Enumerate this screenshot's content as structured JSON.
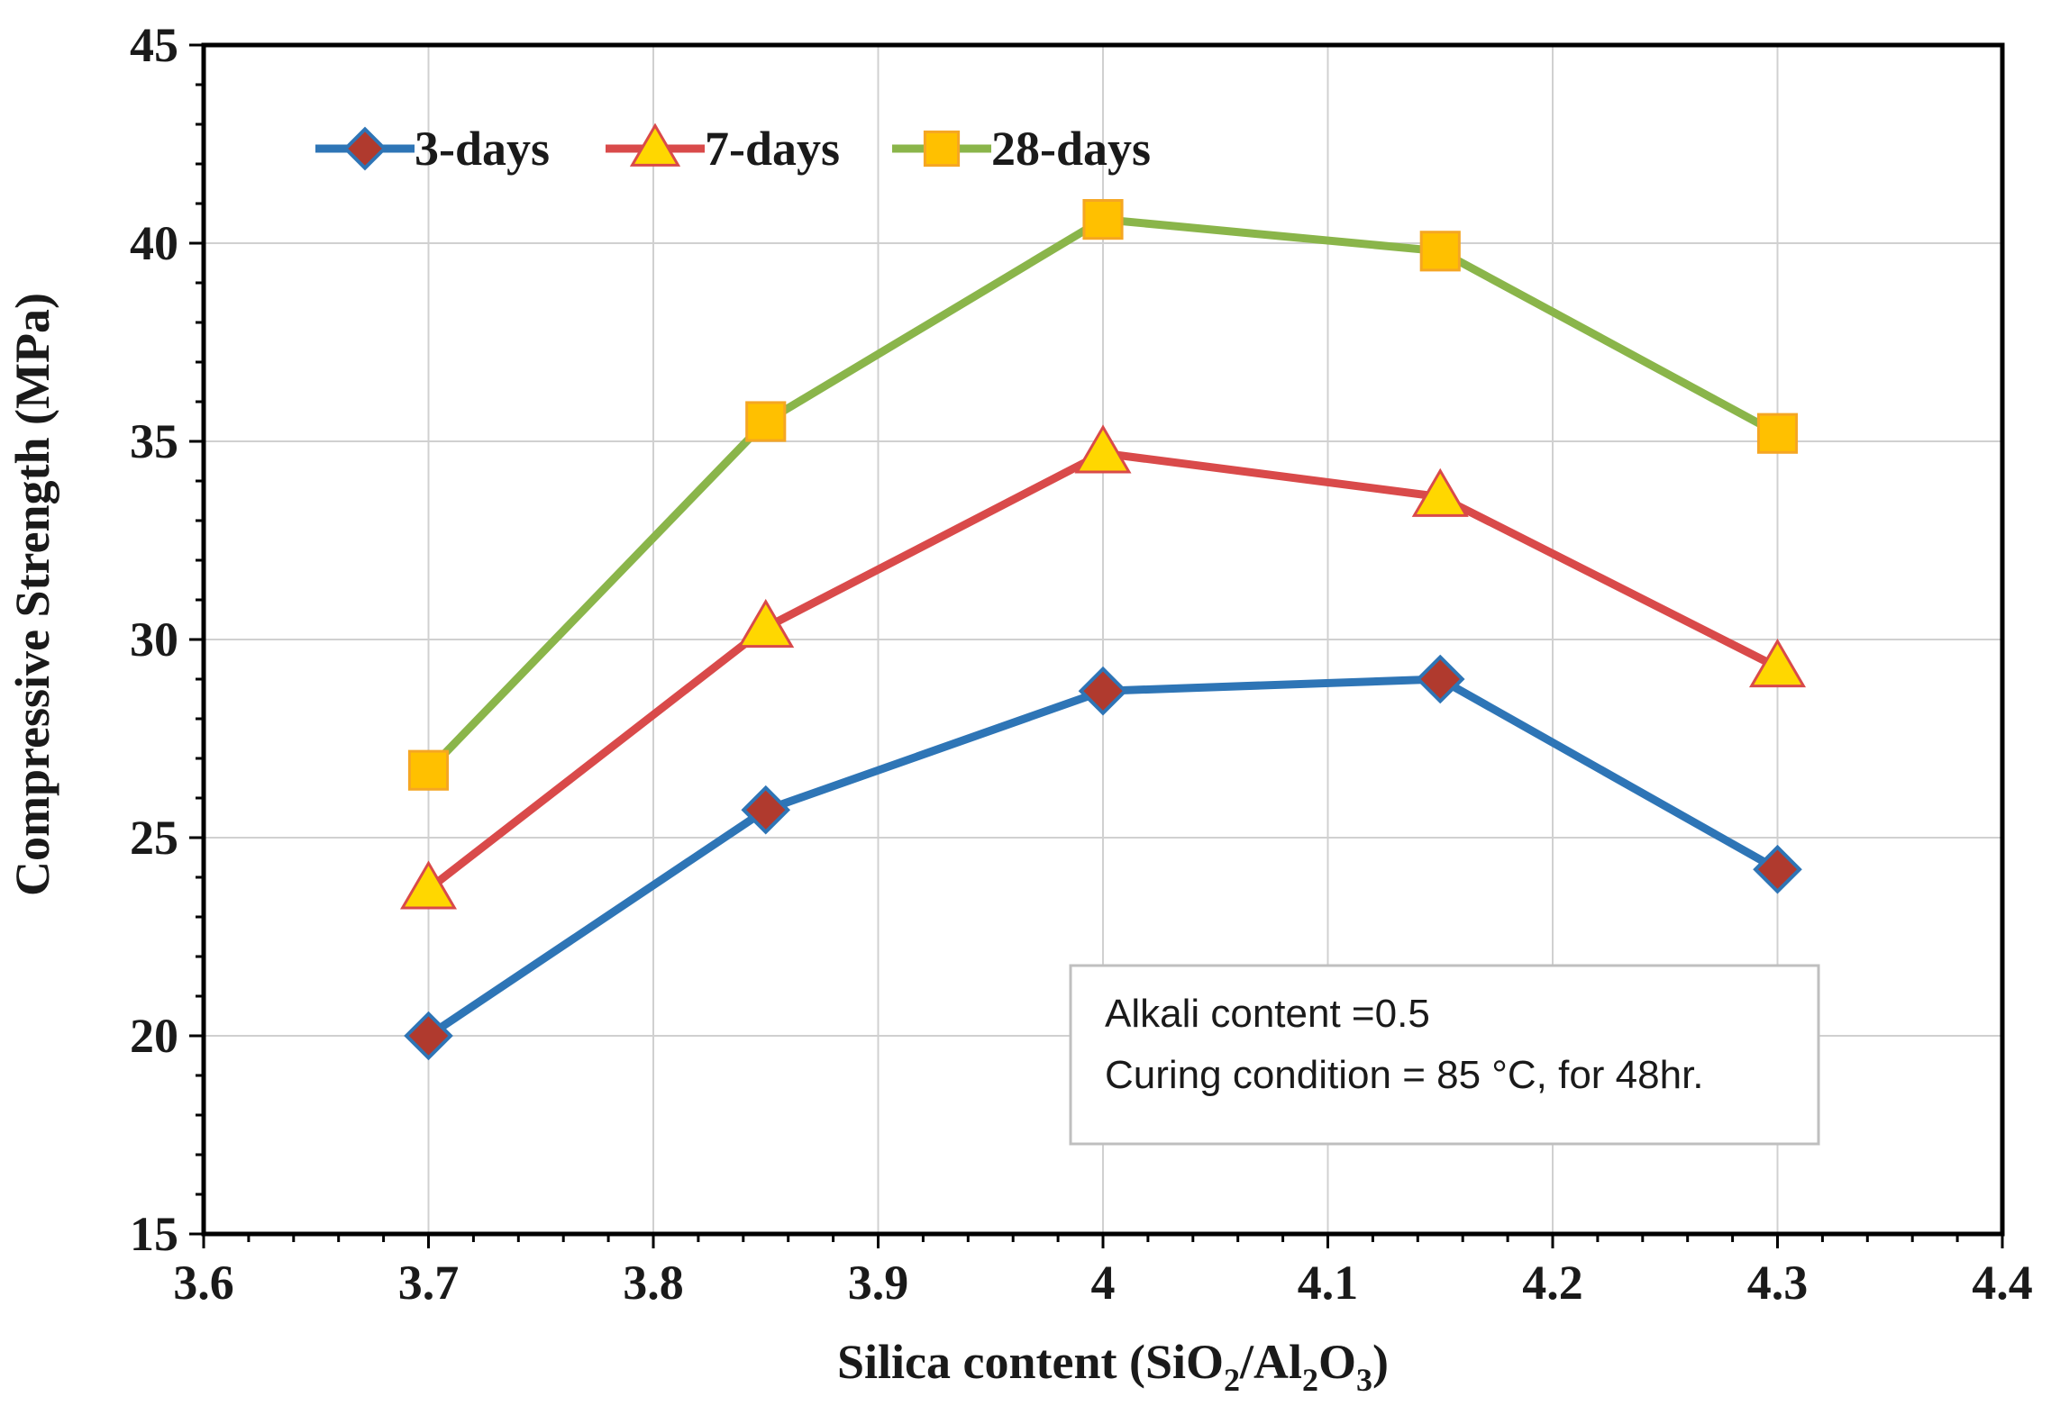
{
  "chart_data": {
    "type": "line",
    "title": "",
    "xlabel": "Silica content (SiO2/Al2O3)",
    "xlabel_parts": {
      "main": "Silica content (SiO",
      "sub1": "2",
      "mid": "/Al",
      "sub2": "2",
      "mid2": "O",
      "sub3": "3",
      "end": ")"
    },
    "ylabel": "Compressive Strength (MPa)",
    "xlim": [
      3.6,
      4.4
    ],
    "ylim": [
      15,
      45
    ],
    "x_ticks": [
      3.6,
      3.7,
      3.8,
      3.9,
      4.0,
      4.1,
      4.2,
      4.3,
      4.4
    ],
    "x_tick_labels": [
      "3.6",
      "3.7",
      "3.8",
      "3.9",
      "4",
      "4.1",
      "4.2",
      "4.3",
      "4.4"
    ],
    "y_ticks": [
      15,
      20,
      25,
      30,
      35,
      40,
      45
    ],
    "y_tick_labels": [
      "15",
      "20",
      "25",
      "30",
      "35",
      "40",
      "45"
    ],
    "x": [
      3.7,
      3.85,
      4.0,
      4.15,
      4.3
    ],
    "grid": true,
    "legend_position": "top-left",
    "series": [
      {
        "name": "3-days",
        "values": [
          20.0,
          25.7,
          28.7,
          29.0,
          24.2
        ],
        "line_color": "#2e75b6",
        "marker": "diamond",
        "marker_fill": "#b03a2e",
        "marker_edge": "#2e75b6"
      },
      {
        "name": "7-days",
        "values": [
          23.7,
          30.3,
          34.7,
          33.6,
          29.3
        ],
        "line_color": "#d94a4a",
        "marker": "triangle",
        "marker_fill": "#ffd700",
        "marker_edge": "#d94a4a"
      },
      {
        "name": "28-days",
        "values": [
          26.7,
          35.5,
          40.6,
          39.8,
          35.2
        ],
        "line_color": "#8ab54a",
        "marker": "square",
        "marker_fill": "#ffc000",
        "marker_edge": "#f5a623"
      }
    ],
    "annotation": {
      "lines": [
        "Alkali content =0.5",
        "Curing condition = 85 °C, for 48hr."
      ]
    }
  }
}
